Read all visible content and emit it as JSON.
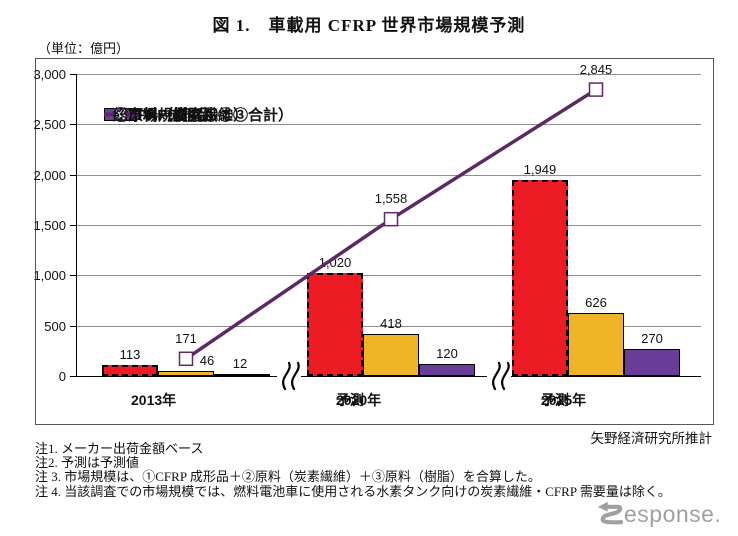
{
  "title": "図 1.　車載用 CFRP 世界市場規模予測",
  "unit_label": "（単位：億円）",
  "source": "矢野経済研究所推計",
  "notes": [
    "注1. メーカー出荷金額ベース",
    "注2. 予測は予測値",
    "注 3. 市場規模は、①CFRP 成形品＋②原料（炭素繊維）＋③原料（樹脂）を合算した。",
    "注 4. 当該調査での市場規模では、燃料電池車に使用される水素タンク向けの炭素繊維・CFRP 需要量は除く。"
  ],
  "watermark": "esponse.",
  "colors": {
    "cfrp_red": "#ED1C24",
    "fiber_yellow": "#F0B428",
    "resin_purple": "#6A3D9A",
    "total_line": "#5B2A63",
    "grid": "#8D8D8D",
    "watermark_gray": "#A0A0A0"
  },
  "chart_data": {
    "type": "bar",
    "title": "車載用CFRP世界市場規模予測",
    "ylabel": "億円",
    "ylim": [
      0,
      3000
    ],
    "yticks": [
      0,
      500,
      1000,
      1500,
      2000,
      2500,
      3000
    ],
    "grid": true,
    "legend_position": "upper-left-inside",
    "axis_break_between_categories": true,
    "categories": [
      {
        "label": "2013年",
        "sublabel": ""
      },
      {
        "label": "2020年",
        "sublabel": "予測"
      },
      {
        "label": "2025年",
        "sublabel": "予測"
      }
    ],
    "series": [
      {
        "name": "①CFRP成形品",
        "type": "bar",
        "color": "#ED1C24",
        "border": "dashed",
        "values": [
          113,
          1020,
          1949
        ]
      },
      {
        "name": "②原料（炭素繊維）",
        "type": "bar",
        "color": "#F0B428",
        "border": "solid",
        "values": [
          46,
          418,
          626
        ]
      },
      {
        "name": "③原料（樹脂）",
        "type": "bar",
        "color": "#6A3D9A",
        "border": "solid",
        "values": [
          12,
          120,
          270
        ]
      },
      {
        "name": "総市場規模（①②③合計）",
        "type": "line",
        "color": "#5B2A63",
        "marker": "open-square",
        "values": [
          171,
          1558,
          2845
        ]
      }
    ]
  }
}
